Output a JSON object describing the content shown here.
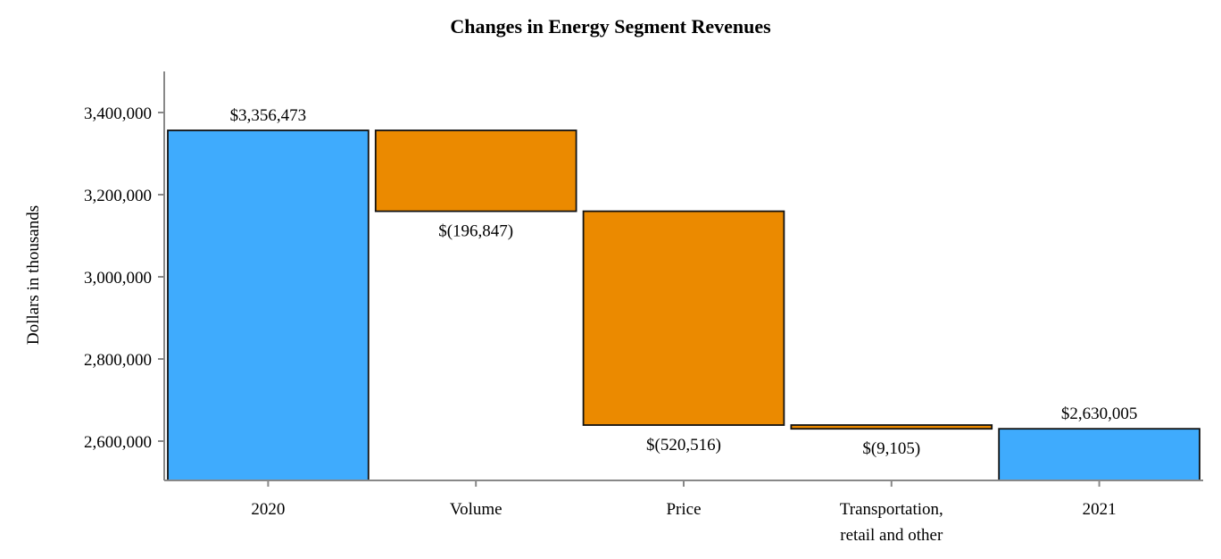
{
  "chart_data": {
    "type": "waterfall",
    "title": "Changes in Energy Segment Revenues",
    "xlabel": "",
    "ylabel": "Dollars in thousands",
    "ylim": [
      2500000,
      3500000
    ],
    "yticks": [
      2600000,
      2800000,
      3000000,
      3200000,
      3400000
    ],
    "ytick_labels": [
      "2,600,000",
      "2,800,000",
      "3,000,000",
      "3,200,000",
      "3,400,000"
    ],
    "grid": false,
    "categories": [
      {
        "lines": [
          "2020"
        ]
      },
      {
        "lines": [
          "Volume"
        ]
      },
      {
        "lines": [
          "Price"
        ]
      },
      {
        "lines": [
          "Transportation,",
          "retail and other"
        ]
      },
      {
        "lines": [
          "2021"
        ]
      }
    ],
    "bars": [
      {
        "kind": "total",
        "start": 0,
        "value": 3356473,
        "label": "$3,356,473"
      },
      {
        "kind": "decrease",
        "start": 3356473,
        "value": -196847,
        "label": "$(196,847)"
      },
      {
        "kind": "decrease",
        "start": 3159626,
        "value": -520516,
        "label": "$(520,516)"
      },
      {
        "kind": "decrease",
        "start": 2639110,
        "value": -9105,
        "label": "$(9,105)"
      },
      {
        "kind": "total",
        "start": 0,
        "value": 2630005,
        "label": "$2,630,005"
      }
    ],
    "colors": {
      "total": "#3fabfd",
      "decrease": "#eb8a00",
      "outline": "#111111",
      "axis": "#888888"
    }
  }
}
